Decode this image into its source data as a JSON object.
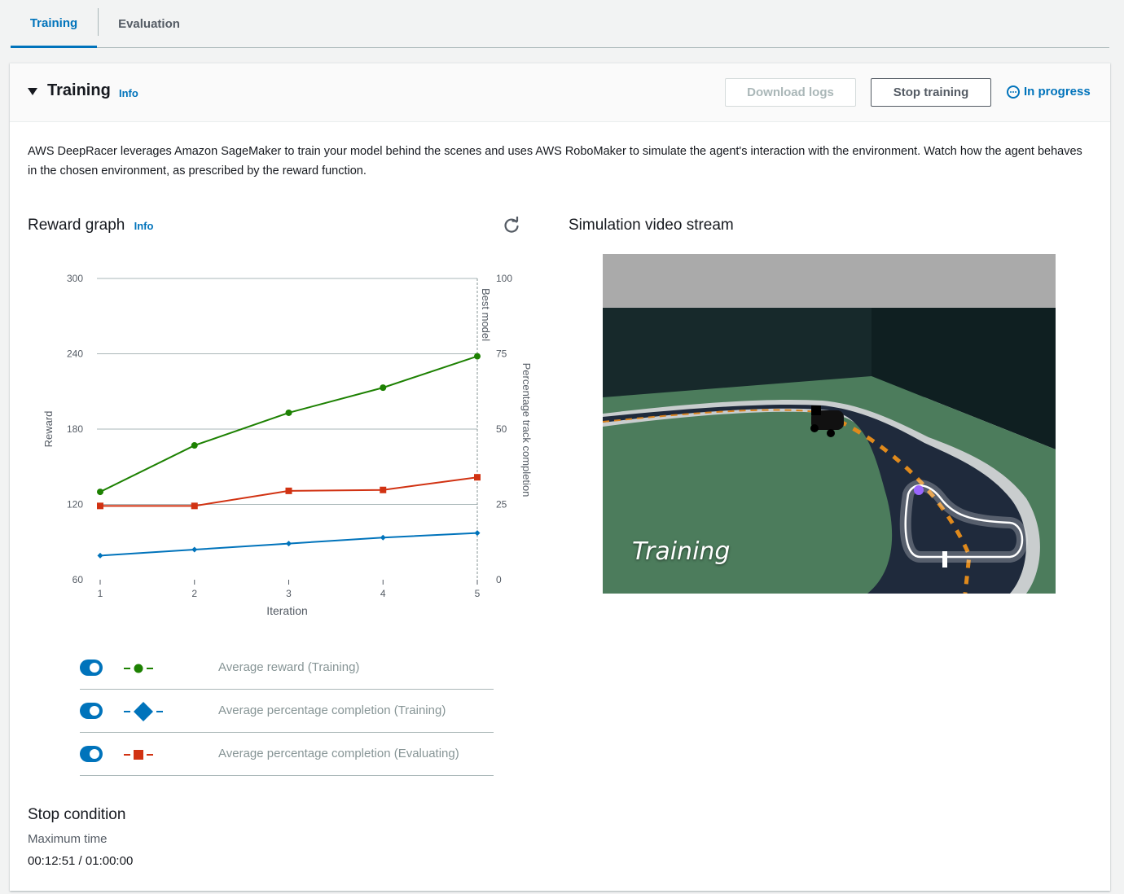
{
  "tabs": [
    {
      "label": "Training",
      "active": true
    },
    {
      "label": "Evaluation",
      "active": false
    }
  ],
  "panel": {
    "title": "Training",
    "info_label": "Info",
    "download_logs_label": "Download logs",
    "stop_training_label": "Stop training",
    "status_label": "In progress",
    "description": "AWS DeepRacer leverages Amazon SageMaker to train your model behind the scenes and uses AWS RoboMaker to simulate the agent's interaction with the environment. Watch how the agent behaves in the chosen environment, as prescribed by the reward function."
  },
  "reward_graph": {
    "title": "Reward graph",
    "info_label": "Info"
  },
  "chart_data": {
    "type": "line",
    "x": [
      1,
      2,
      3,
      4,
      5
    ],
    "xlabel": "Iteration",
    "ylabel": "Reward",
    "y2label": "Percentage track completion",
    "marker_label": "Best model",
    "ylim": [
      60,
      300
    ],
    "y2lim": [
      0,
      100
    ],
    "yticks": [
      60,
      120,
      180,
      240,
      300
    ],
    "y2ticks": [
      0,
      25,
      50,
      75,
      100
    ],
    "xticks": [
      1,
      2,
      3,
      4,
      5
    ],
    "grid": true,
    "series": [
      {
        "name": "Average reward (Training)",
        "axis": "left",
        "color": "#1d8102",
        "marker": "circle",
        "values": [
          130,
          167,
          193,
          213,
          238
        ]
      },
      {
        "name": "Average percentage completion (Training)",
        "axis": "right",
        "color": "#0073bb",
        "marker": "diamond",
        "values": [
          8,
          10,
          12,
          14,
          15.5
        ]
      },
      {
        "name": "Average percentage completion (Evaluating)",
        "axis": "right",
        "color": "#d13212",
        "marker": "square",
        "values": [
          24.5,
          24.5,
          29.5,
          29.8,
          34
        ]
      }
    ]
  },
  "legend": [
    {
      "label": "Average reward (Training)",
      "enabled": true,
      "color": "#1d8102",
      "marker": "circle"
    },
    {
      "label": "Average percentage completion (Training)",
      "enabled": true,
      "color": "#0073bb",
      "marker": "diamond"
    },
    {
      "label": "Average percentage completion (Evaluating)",
      "enabled": true,
      "color": "#d13212",
      "marker": "square"
    }
  ],
  "video": {
    "title": "Simulation video stream",
    "overlay_text": "Training"
  },
  "stop_condition": {
    "title": "Stop condition",
    "label": "Maximum time",
    "value": "00:12:51 / 01:00:00"
  }
}
